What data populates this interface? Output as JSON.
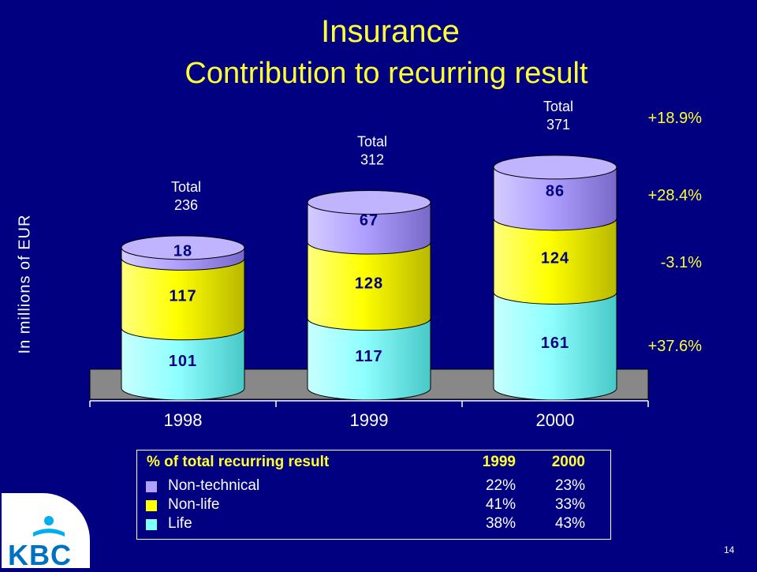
{
  "title": "Insurance",
  "subtitle": "Contribution to recurring result",
  "page_number": "14",
  "logo_text": "KBC",
  "colors": {
    "background": "#000080",
    "title": "#ffff33",
    "life": "#80ffff",
    "non_life": "#ffff00",
    "non_technical": "#b0a0ff"
  },
  "chart_data": {
    "type": "bar",
    "stacked": true,
    "categories": [
      "1998",
      "1999",
      "2000"
    ],
    "series": [
      {
        "name": "Life",
        "values": [
          101,
          117,
          161
        ]
      },
      {
        "name": "Non-life",
        "values": [
          117,
          128,
          124
        ]
      },
      {
        "name": "Non-technical",
        "values": [
          18,
          67,
          86
        ]
      }
    ],
    "totals": [
      236,
      312,
      371
    ],
    "total_label": "Total",
    "ylabel": "In millions of EUR",
    "ylim": [
      0,
      400
    ]
  },
  "growth": [
    "+18.9%",
    "+28.4%",
    "-3.1%",
    "+37.6%"
  ],
  "legend": {
    "header": "% of total recurring result",
    "col1": "1999",
    "col2": "2000",
    "rows": [
      {
        "label": "Non-technical",
        "v1999": "22%",
        "v2000": "23%"
      },
      {
        "label": "Non-life",
        "v1999": "41%",
        "v2000": "33%"
      },
      {
        "label": "Life",
        "v1999": "38%",
        "v2000": "43%"
      }
    ]
  }
}
